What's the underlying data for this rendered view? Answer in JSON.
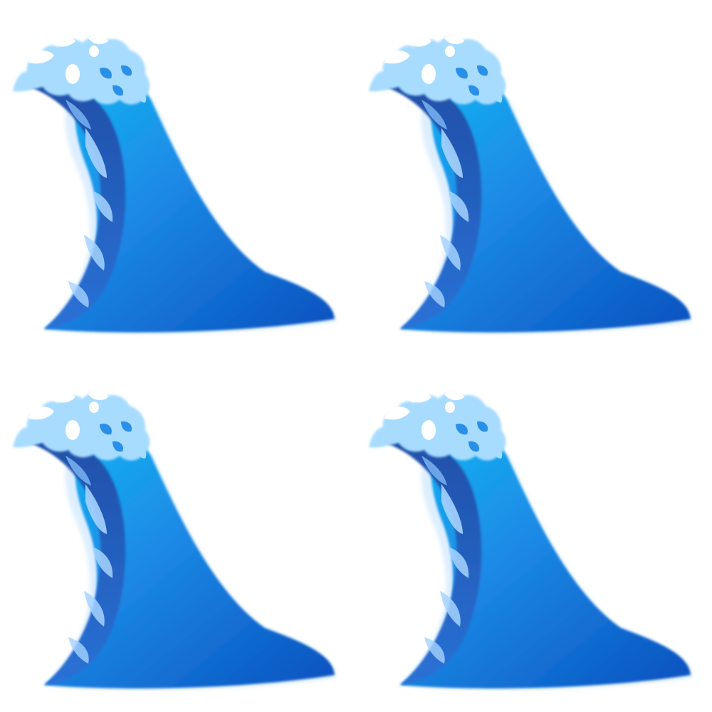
{
  "image": {
    "background": "#ffffff",
    "icon": "water-wave-icon",
    "tile_count": 4,
    "colors": {
      "deep_blue": "#0a56c2",
      "mid_blue": "#1c8ae6",
      "light_blue": "#15b8f2",
      "inner_dark": "#1f5cb8",
      "inner_light": "#a6d3ff",
      "foam": "#a7dcff",
      "foam_highlight": "#ffffff"
    }
  }
}
